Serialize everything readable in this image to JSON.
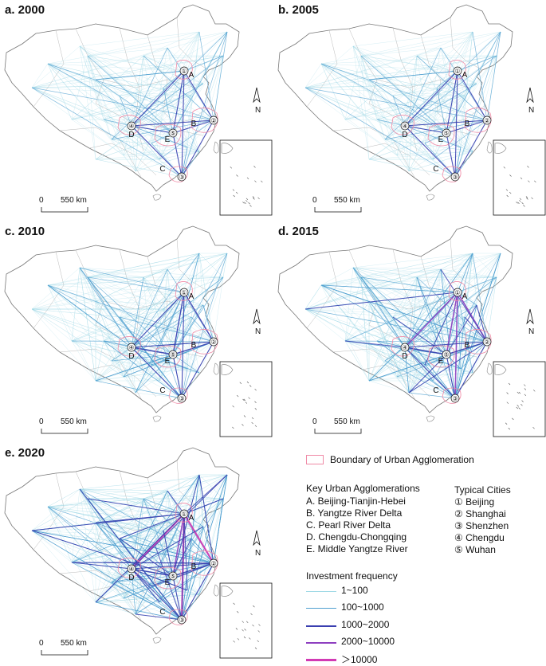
{
  "panels": [
    {
      "id": "a",
      "title": "a. 2000",
      "level": 0
    },
    {
      "id": "b",
      "title": "b. 2005",
      "level": 0
    },
    {
      "id": "c",
      "title": "c. 2010",
      "level": 1
    },
    {
      "id": "d",
      "title": "d. 2015",
      "level": 2
    },
    {
      "id": "e",
      "title": "e. 2020",
      "level": 3
    }
  ],
  "scale_label": "550 km",
  "scale_zero": "0",
  "north_label": "N",
  "map_labels": {
    "A": "A",
    "B": "B",
    "C": "C",
    "D": "D",
    "E": "E",
    "c1": "①",
    "c2": "②",
    "c3": "③",
    "c4": "④",
    "c5": "⑤"
  },
  "legend": {
    "boundary": "Boundary of Urban Agglomeration",
    "key_title": "Key Urban Agglomerations",
    "key_items": [
      "A. Beijing-Tianjin-Hebei",
      "B. Yangtze River Delta",
      "C. Pearl River Delta",
      "D. Chengdu-Chongqing",
      "E. Middle Yangtze River"
    ],
    "cities_title": "Typical Cities",
    "cities": [
      "① Beijing",
      "② Shanghai",
      "③ Shenzhen",
      "④ Chengdu",
      "⑤ Wuhan"
    ],
    "freq_title": "Investment frequency",
    "freq_items": [
      {
        "label": "1~100",
        "color": "#9fd9e6"
      },
      {
        "label": "100~1000",
        "color": "#4f9fd0"
      },
      {
        "label": "1000~2000",
        "color": "#3a3fb0"
      },
      {
        "label": "2000~10000",
        "color": "#8e3fc0"
      },
      {
        "label": "＞10000",
        "color": "#d23ab4"
      }
    ]
  },
  "colors": {
    "boundary": "#f08aa6",
    "outline": "#777777"
  }
}
